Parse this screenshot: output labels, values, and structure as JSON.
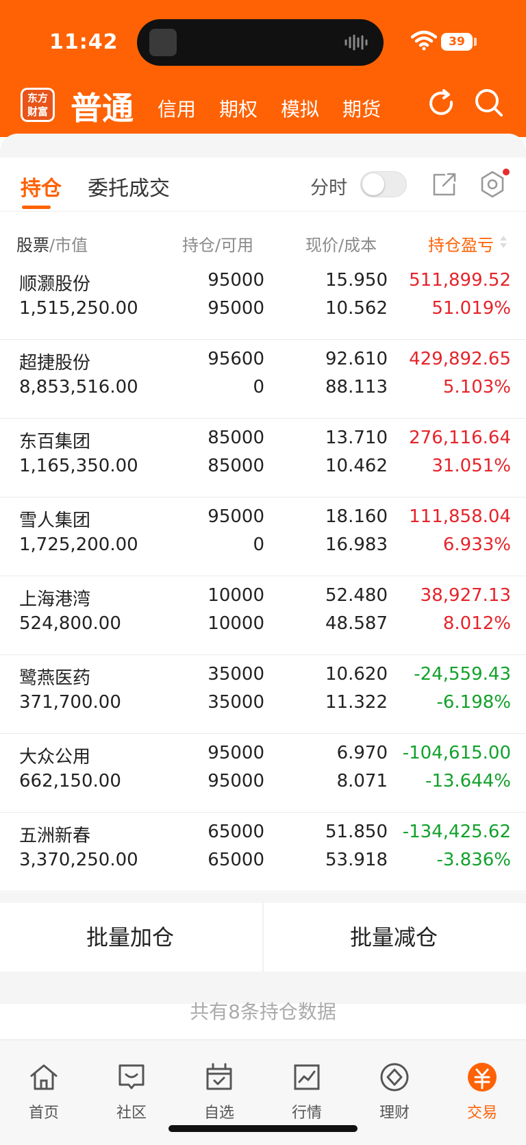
{
  "status_bar": {
    "time": "11:42",
    "battery": "39"
  },
  "nav": {
    "logo_text": "东方\n财富",
    "active": "普通",
    "tabs": [
      "信用",
      "期权",
      "模拟",
      "期货"
    ]
  },
  "tabs": {
    "holding": "持仓",
    "orders": "委托成交",
    "fenshi": "分时"
  },
  "columns": {
    "stock": "股票",
    "market_value": "市值",
    "position": "持仓",
    "available": "可用",
    "price": "现价",
    "cost": "成本",
    "pnl": "持仓盈亏"
  },
  "holdings": [
    {
      "name": "顺灏股份",
      "market_value": "1,515,250.00",
      "position": "95000",
      "available": "95000",
      "price": "15.950",
      "cost": "10.562",
      "pnl": "511,899.52",
      "pnl_pct": "51.019%",
      "trend": "up"
    },
    {
      "name": "超捷股份",
      "market_value": "8,853,516.00",
      "position": "95600",
      "available": "0",
      "price": "92.610",
      "cost": "88.113",
      "pnl": "429,892.65",
      "pnl_pct": "5.103%",
      "trend": "up"
    },
    {
      "name": "东百集团",
      "market_value": "1,165,350.00",
      "position": "85000",
      "available": "85000",
      "price": "13.710",
      "cost": "10.462",
      "pnl": "276,116.64",
      "pnl_pct": "31.051%",
      "trend": "up"
    },
    {
      "name": "雪人集团",
      "market_value": "1,725,200.00",
      "position": "95000",
      "available": "0",
      "price": "18.160",
      "cost": "16.983",
      "pnl": "111,858.04",
      "pnl_pct": "6.933%",
      "trend": "up"
    },
    {
      "name": "上海港湾",
      "market_value": "524,800.00",
      "position": "10000",
      "available": "10000",
      "price": "52.480",
      "cost": "48.587",
      "pnl": "38,927.13",
      "pnl_pct": "8.012%",
      "trend": "up"
    },
    {
      "name": "鹭燕医药",
      "market_value": "371,700.00",
      "position": "35000",
      "available": "35000",
      "price": "10.620",
      "cost": "11.322",
      "pnl": "-24,559.43",
      "pnl_pct": "-6.198%",
      "trend": "down"
    },
    {
      "name": "大众公用",
      "market_value": "662,150.00",
      "position": "95000",
      "available": "95000",
      "price": "6.970",
      "cost": "8.071",
      "pnl": "-104,615.00",
      "pnl_pct": "-13.644%",
      "trend": "down"
    },
    {
      "name": "五洲新春",
      "market_value": "3,370,250.00",
      "position": "65000",
      "available": "65000",
      "price": "51.850",
      "cost": "53.918",
      "pnl": "-134,425.62",
      "pnl_pct": "-3.836%",
      "trend": "down"
    }
  ],
  "batch": {
    "add": "批量加仓",
    "reduce": "批量减仓"
  },
  "count_text": "共有8条持仓数据",
  "tabbar": [
    {
      "label": "首页",
      "icon": "home-icon"
    },
    {
      "label": "社区",
      "icon": "community-icon"
    },
    {
      "label": "自选",
      "icon": "watchlist-icon"
    },
    {
      "label": "行情",
      "icon": "market-icon"
    },
    {
      "label": "理财",
      "icon": "wealth-icon"
    },
    {
      "label": "交易",
      "icon": "trade-icon",
      "active": true
    }
  ],
  "colors": {
    "brand": "#fe6204",
    "up": "#e5242b",
    "down": "#12a12a"
  }
}
